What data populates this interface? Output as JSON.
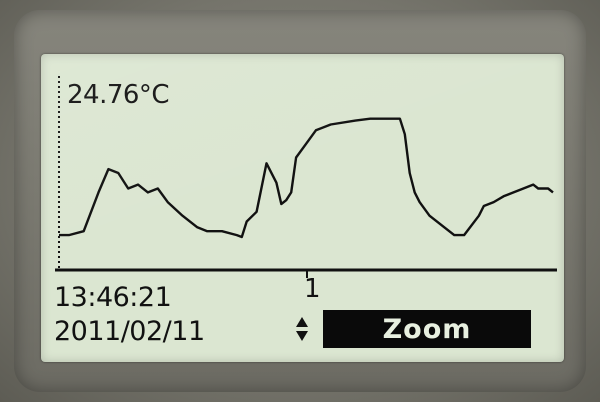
{
  "display": {
    "reading": "24.76°C",
    "time": "13:46:21",
    "date": "2011/02/11",
    "cursor_index": "1",
    "softkey_label": "Zoom",
    "icons": {
      "scroll": "up-down-arrows-icon"
    },
    "colors": {
      "lcd_background": "#dbe6d1",
      "lcd_ink": "#111111",
      "softkey_bg": "#0a0a0a",
      "softkey_text": "#e8f0e0"
    }
  },
  "chart_data": {
    "type": "line",
    "title": "",
    "xlabel": "",
    "ylabel": "",
    "grid": false,
    "ylim": [
      0,
      100
    ],
    "x": [
      0,
      2,
      5,
      8,
      10,
      12,
      14,
      16,
      18,
      20,
      22,
      25,
      28,
      30,
      33,
      36,
      37,
      38,
      40,
      42,
      44,
      45,
      46,
      47,
      48,
      50,
      52,
      55,
      60,
      63,
      65,
      66,
      67,
      68,
      69,
      70,
      71,
      72,
      73,
      75,
      78,
      80,
      82,
      85,
      86,
      88,
      90,
      92,
      94,
      96,
      97,
      99,
      100
    ],
    "series": [
      {
        "values": [
          18,
          18,
          20,
          40,
          52,
          50,
          42,
          44,
          40,
          42,
          35,
          28,
          22,
          20,
          20,
          18,
          17,
          25,
          30,
          55,
          45,
          34,
          36,
          40,
          58,
          65,
          72,
          75,
          77,
          78,
          78,
          78,
          78,
          78,
          78,
          70,
          50,
          40,
          35,
          28,
          22,
          18,
          18,
          28,
          33,
          35,
          38,
          40,
          42,
          44,
          42,
          42,
          40
        ]
      }
    ]
  }
}
